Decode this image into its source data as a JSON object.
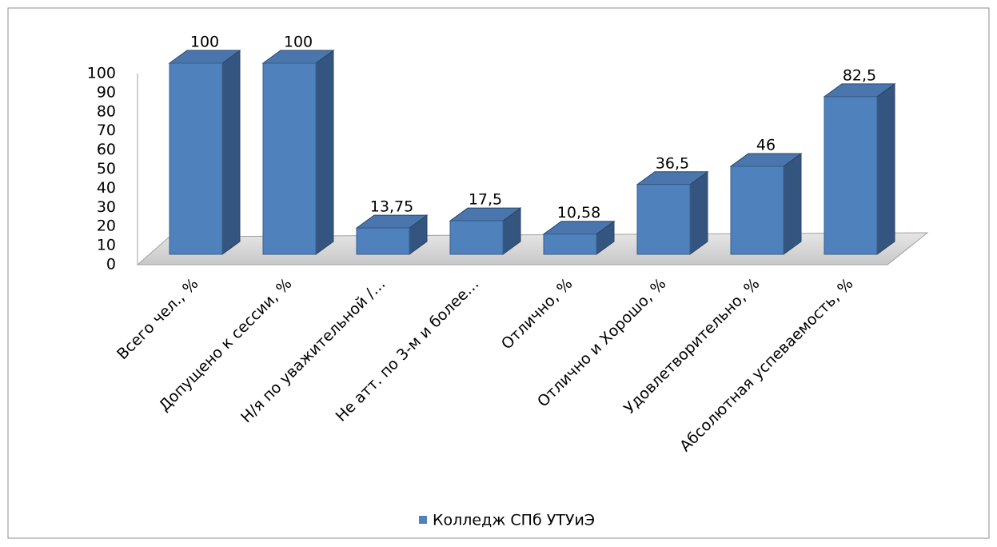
{
  "chart_data": {
    "type": "bar3d",
    "categories": [
      "Всего чел., %",
      "Допущено к сессии, %",
      "Н/я по уважительной /…",
      "Не атт. по 3-м и более…",
      "Отлично, %",
      "Отлично и Хорошо, %",
      "Удовлетворительно, %",
      "Абсолютная успеваемость, %"
    ],
    "series": [
      {
        "name": "Колледж СПб УТУиЭ",
        "color": "#4f81bd",
        "values": [
          100,
          100,
          13.75,
          17.5,
          10.58,
          36.5,
          46,
          82.5
        ],
        "value_labels": [
          "100",
          "100",
          "13,75",
          "17,5",
          "10,58",
          "36,5",
          "46",
          "82,5"
        ]
      }
    ],
    "ylim": [
      0,
      100
    ],
    "yticks": [
      0,
      10,
      20,
      30,
      40,
      50,
      60,
      70,
      80,
      90,
      100
    ],
    "legend": "bottom",
    "grid": false
  }
}
